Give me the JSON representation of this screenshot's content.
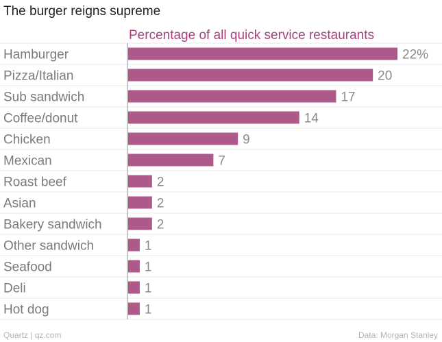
{
  "header": {
    "title": "The burger reigns supreme"
  },
  "footer": {
    "source_left": "Quartz | qz.com",
    "source_right": "Data: Morgan Stanley"
  },
  "colors": {
    "bar": "#ad5a8b",
    "subtitle": "#a8407f",
    "label": "#7a7a7a",
    "value": "#8a8a8a",
    "grid": "#e8e8e8",
    "axis": "#888888"
  },
  "chart_data": {
    "type": "bar",
    "orientation": "horizontal",
    "title": "The burger reigns supreme",
    "subtitle": "Percentage of all quick service restaurants",
    "categories": [
      "Hamburger",
      "Pizza/Italian",
      "Sub sandwich",
      "Coffee/donut",
      "Chicken",
      "Mexican",
      "Roast beef",
      "Asian",
      "Bakery sandwich",
      "Other sandwich",
      "Seafood",
      "Deli",
      "Hot dog"
    ],
    "values": [
      22,
      20,
      17,
      14,
      9,
      7,
      2,
      2,
      2,
      1,
      1,
      1,
      1
    ],
    "value_labels": [
      "22%",
      "20",
      "17",
      "14",
      "9",
      "7",
      "2",
      "2",
      "2",
      "1",
      "1",
      "1",
      "1"
    ],
    "xlim": [
      0,
      22
    ],
    "unit": "%"
  }
}
